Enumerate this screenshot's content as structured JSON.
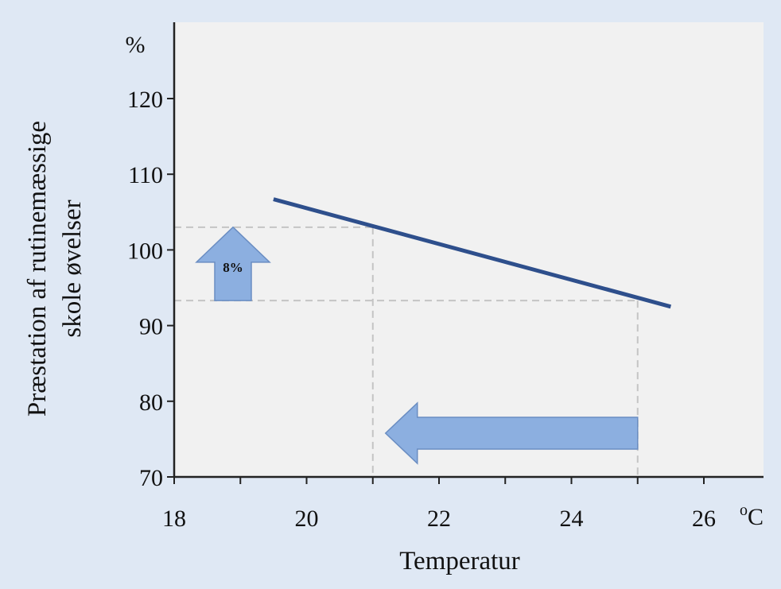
{
  "chart_data": {
    "type": "line",
    "title": "",
    "ylabel_line1": "Præstation af rutinemæssige",
    "ylabel_line2": "skole øvelser",
    "ylabel_unit": "%",
    "xlabel": "Temperatur",
    "xlabel_unit": "oC",
    "xlim": [
      18,
      26.9
    ],
    "ylim": [
      70,
      125
    ],
    "x_ticks": [
      18,
      20,
      22,
      24,
      26
    ],
    "y_ticks": [
      70,
      80,
      90,
      100,
      110,
      120
    ],
    "series": [
      {
        "x": [
          19.5,
          25.5
        ],
        "y": [
          106.7,
          92.5
        ]
      }
    ],
    "reference_lines": {
      "x": [
        21,
        25
      ],
      "y": [
        103,
        93.3
      ]
    },
    "annotations": {
      "up_arrow_label": "8%",
      "left_arrow": {
        "from_x": 25,
        "to_x": 21
      }
    },
    "grid": false,
    "legend": "none",
    "colors": {
      "background": "#dfe8f4",
      "plot_area": "#f1f1f1",
      "line": "#2e4f8c",
      "arrow_fill": "#8cafe0",
      "arrow_stroke": "#6a8dc2",
      "ref_line": "#c4c4c4",
      "axis": "#222222"
    }
  }
}
